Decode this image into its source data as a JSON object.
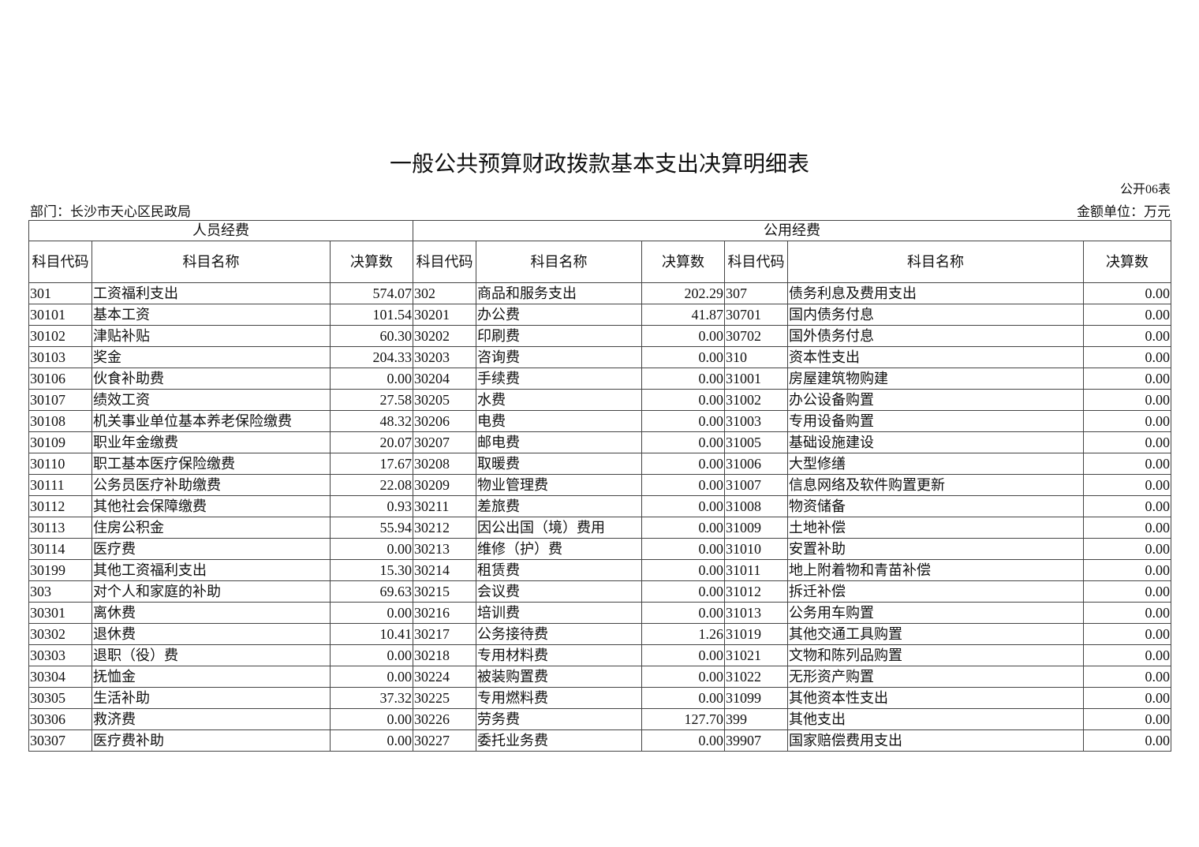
{
  "title": "一般公共预算财政拨款基本支出决算明细表",
  "form_no": "公开06表",
  "department": "部门：长沙市天心区民政局",
  "unit": "金额单位：万元",
  "groups": [
    "人员经费",
    "公用经费"
  ],
  "columns": [
    "科目代码",
    "科目名称",
    "决算数",
    "科目代码",
    "科目名称",
    "决算数",
    "科目代码",
    "科目名称",
    "决算数"
  ],
  "rows": [
    [
      "301",
      "工资福利支出",
      "574.07",
      "302",
      "商品和服务支出",
      "202.29",
      "307",
      "债务利息及费用支出",
      "0.00"
    ],
    [
      "30101",
      "基本工资",
      "101.54",
      "30201",
      "办公费",
      "41.87",
      "30701",
      "国内债务付息",
      "0.00"
    ],
    [
      "30102",
      "津贴补贴",
      "60.30",
      "30202",
      "印刷费",
      "0.00",
      "30702",
      "国外债务付息",
      "0.00"
    ],
    [
      "30103",
      "奖金",
      "204.33",
      "30203",
      "咨询费",
      "0.00",
      "310",
      "资本性支出",
      "0.00"
    ],
    [
      "30106",
      "伙食补助费",
      "0.00",
      "30204",
      "手续费",
      "0.00",
      "31001",
      "房屋建筑物购建",
      "0.00"
    ],
    [
      "30107",
      "绩效工资",
      "27.58",
      "30205",
      "水费",
      "0.00",
      "31002",
      "办公设备购置",
      "0.00"
    ],
    [
      "30108",
      "机关事业单位基本养老保险缴费",
      "48.32",
      "30206",
      "电费",
      "0.00",
      "31003",
      "专用设备购置",
      "0.00"
    ],
    [
      "30109",
      "职业年金缴费",
      "20.07",
      "30207",
      "邮电费",
      "0.00",
      "31005",
      "基础设施建设",
      "0.00"
    ],
    [
      "30110",
      "职工基本医疗保险缴费",
      "17.67",
      "30208",
      "取暖费",
      "0.00",
      "31006",
      "大型修缮",
      "0.00"
    ],
    [
      "30111",
      "公务员医疗补助缴费",
      "22.08",
      "30209",
      "物业管理费",
      "0.00",
      "31007",
      "信息网络及软件购置更新",
      "0.00"
    ],
    [
      "30112",
      "其他社会保障缴费",
      "0.93",
      "30211",
      "差旅费",
      "0.00",
      "31008",
      "物资储备",
      "0.00"
    ],
    [
      "30113",
      "住房公积金",
      "55.94",
      "30212",
      "因公出国（境）费用",
      "0.00",
      "31009",
      "土地补偿",
      "0.00"
    ],
    [
      "30114",
      "医疗费",
      "0.00",
      "30213",
      "维修（护）费",
      "0.00",
      "31010",
      "安置补助",
      "0.00"
    ],
    [
      "30199",
      "其他工资福利支出",
      "15.30",
      "30214",
      "租赁费",
      "0.00",
      "31011",
      "地上附着物和青苗补偿",
      "0.00"
    ],
    [
      "303",
      "对个人和家庭的补助",
      "69.63",
      "30215",
      "会议费",
      "0.00",
      "31012",
      "拆迁补偿",
      "0.00"
    ],
    [
      "30301",
      "离休费",
      "0.00",
      "30216",
      "培训费",
      "0.00",
      "31013",
      "公务用车购置",
      "0.00"
    ],
    [
      "30302",
      "退休费",
      "10.41",
      "30217",
      "公务接待费",
      "1.26",
      "31019",
      "其他交通工具购置",
      "0.00"
    ],
    [
      "30303",
      "退职（役）费",
      "0.00",
      "30218",
      "专用材料费",
      "0.00",
      "31021",
      "文物和陈列品购置",
      "0.00"
    ],
    [
      "30304",
      "抚恤金",
      "0.00",
      "30224",
      "被装购置费",
      "0.00",
      "31022",
      "无形资产购置",
      "0.00"
    ],
    [
      "30305",
      "生活补助",
      "37.32",
      "30225",
      "专用燃料费",
      "0.00",
      "31099",
      "其他资本性支出",
      "0.00"
    ],
    [
      "30306",
      "救济费",
      "0.00",
      "30226",
      "劳务费",
      "127.70",
      "399",
      "其他支出",
      "0.00"
    ],
    [
      "30307",
      "医疗费补助",
      "0.00",
      "30227",
      "委托业务费",
      "0.00",
      "39907",
      "国家赔偿费用支出",
      "0.00"
    ]
  ]
}
